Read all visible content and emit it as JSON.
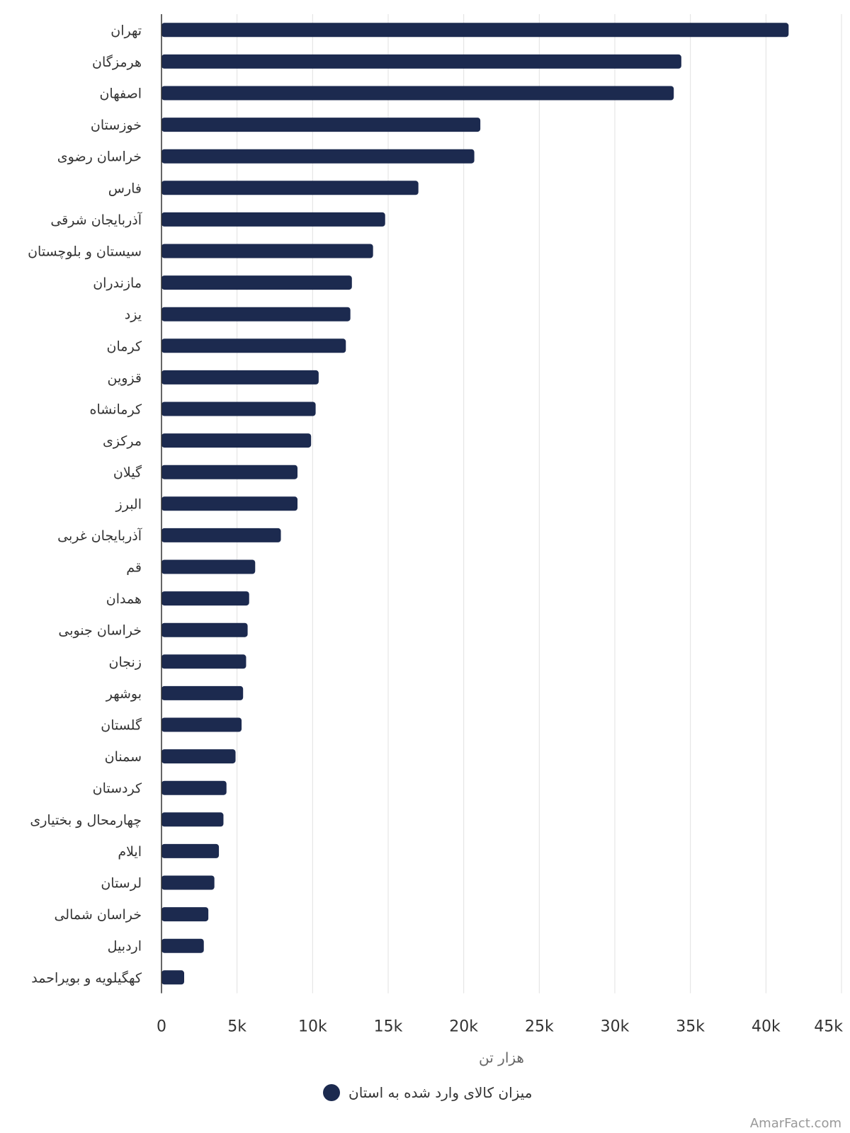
{
  "chart_data": {
    "type": "bar",
    "orientation": "horizontal",
    "categories": [
      "تهران",
      "هرمزگان",
      "اصفهان",
      "خوزستان",
      "خراسان رضوی",
      "فارس",
      "آذربایجان شرقی",
      "سیستان و بلوچستان",
      "مازندران",
      "یزد",
      "کرمان",
      "قزوین",
      "کرمانشاه",
      "مرکزی",
      "گیلان",
      "البرز",
      "آذربایجان غربی",
      "قم",
      "همدان",
      "خراسان جنوبی",
      "زنجان",
      "بوشهر",
      "گلستان",
      "سمنان",
      "کردستان",
      "چهارمحال و بختیاری",
      "ایلام",
      "لرستان",
      "خراسان شمالی",
      "اردبیل",
      "کهگیلویه و بویراحمد"
    ],
    "series": [
      {
        "name": "میزان کالای وارد شده به استان",
        "values": [
          41500,
          34400,
          33900,
          21100,
          20700,
          17000,
          14800,
          14000,
          12600,
          12500,
          12200,
          10400,
          10200,
          9900,
          9000,
          9000,
          7900,
          6200,
          5800,
          5700,
          5600,
          5400,
          5300,
          4900,
          4300,
          4100,
          3800,
          3500,
          3100,
          2800,
          1500
        ]
      }
    ],
    "xlabel": "هزار تن",
    "xlim": [
      0,
      45000
    ],
    "ticks": [
      "0",
      "5k",
      "10k",
      "15k",
      "20k",
      "25k",
      "30k",
      "35k",
      "40k",
      "45k"
    ],
    "tick_values": [
      0,
      5000,
      10000,
      15000,
      20000,
      25000,
      30000,
      35000,
      40000,
      45000
    ],
    "grid": "vertical",
    "legend_position": "bottom-center",
    "bar_color": "#1c2a4f",
    "grid_color": "#e0e0e0",
    "credit": "AmarFact.com"
  }
}
